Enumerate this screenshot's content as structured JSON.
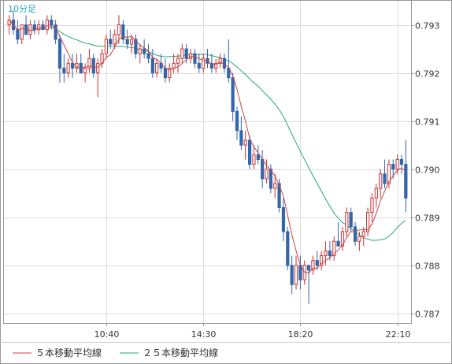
{
  "chart_data": {
    "type": "candlestick",
    "period_label": "10分足",
    "x_ticks": [
      "10:40",
      "14:30",
      "18:20",
      "22:10"
    ],
    "y_ticks": [
      0.787,
      0.788,
      0.789,
      0.79,
      0.791,
      0.792,
      0.793
    ],
    "ylim": [
      0.7868,
      0.7935
    ],
    "grid": true,
    "colors": {
      "up": "#cc3333",
      "down": "#3366aa",
      "ma5": "#cc4444",
      "ma25": "#22aa77",
      "grid": "#dcdcdc",
      "frame": "#999999"
    },
    "legend": [
      {
        "name": "５本移動平均線",
        "color": "#cc4444"
      },
      {
        "name": "２５本移動平均線",
        "color": "#22aa77"
      }
    ],
    "candles": [
      [
        0.793,
        0.7932,
        0.7928,
        0.7931
      ],
      [
        0.7931,
        0.7933,
        0.7928,
        0.7929
      ],
      [
        0.7929,
        0.7931,
        0.7926,
        0.7927
      ],
      [
        0.7927,
        0.793,
        0.7926,
        0.793
      ],
      [
        0.793,
        0.7932,
        0.7928,
        0.7928
      ],
      [
        0.7928,
        0.7931,
        0.7927,
        0.793
      ],
      [
        0.793,
        0.7931,
        0.7928,
        0.7929
      ],
      [
        0.7929,
        0.7931,
        0.7928,
        0.793
      ],
      [
        0.793,
        0.7931,
        0.7929,
        0.7929
      ],
      [
        0.7929,
        0.7932,
        0.7928,
        0.7931
      ],
      [
        0.7931,
        0.7932,
        0.7929,
        0.793
      ],
      [
        0.793,
        0.7931,
        0.7926,
        0.7927
      ],
      [
        0.7927,
        0.7928,
        0.7918,
        0.7921
      ],
      [
        0.7921,
        0.7924,
        0.7918,
        0.792
      ],
      [
        0.792,
        0.7923,
        0.7919,
        0.7922
      ],
      [
        0.7922,
        0.7924,
        0.7919,
        0.7921
      ],
      [
        0.7921,
        0.7924,
        0.792,
        0.7922
      ],
      [
        0.7922,
        0.7924,
        0.792,
        0.792
      ],
      [
        0.792,
        0.7922,
        0.7918,
        0.7921
      ],
      [
        0.7921,
        0.7925,
        0.792,
        0.7923
      ],
      [
        0.7923,
        0.7924,
        0.7919,
        0.792
      ],
      [
        0.792,
        0.7923,
        0.7915,
        0.7922
      ],
      [
        0.7922,
        0.7925,
        0.7921,
        0.7924
      ],
      [
        0.7924,
        0.7928,
        0.7923,
        0.7927
      ],
      [
        0.7927,
        0.7929,
        0.7925,
        0.7926
      ],
      [
        0.7926,
        0.7929,
        0.7925,
        0.7928
      ],
      [
        0.7928,
        0.7932,
        0.7926,
        0.793
      ],
      [
        0.793,
        0.7931,
        0.7926,
        0.7927
      ],
      [
        0.7927,
        0.7929,
        0.7925,
        0.7926
      ],
      [
        0.7926,
        0.7928,
        0.7924,
        0.7927
      ],
      [
        0.7927,
        0.7928,
        0.7923,
        0.7924
      ],
      [
        0.7924,
        0.7926,
        0.7922,
        0.7925
      ],
      [
        0.7925,
        0.7927,
        0.7923,
        0.7924
      ],
      [
        0.7924,
        0.7926,
        0.7922,
        0.7923
      ],
      [
        0.7923,
        0.7925,
        0.7919,
        0.792
      ],
      [
        0.792,
        0.7923,
        0.7919,
        0.7922
      ],
      [
        0.7922,
        0.7924,
        0.792,
        0.7921
      ],
      [
        0.7921,
        0.7923,
        0.7918,
        0.7919
      ],
      [
        0.7919,
        0.7922,
        0.7918,
        0.7921
      ],
      [
        0.7921,
        0.7924,
        0.792,
        0.7922
      ],
      [
        0.7922,
        0.7924,
        0.792,
        0.7923
      ],
      [
        0.7923,
        0.7926,
        0.7922,
        0.7925
      ],
      [
        0.7925,
        0.7926,
        0.7922,
        0.7923
      ],
      [
        0.7923,
        0.7925,
        0.7922,
        0.7924
      ],
      [
        0.7924,
        0.7925,
        0.7921,
        0.7922
      ],
      [
        0.7922,
        0.7924,
        0.792,
        0.7921
      ],
      [
        0.7921,
        0.7924,
        0.792,
        0.7923
      ],
      [
        0.7923,
        0.7925,
        0.7921,
        0.7922
      ],
      [
        0.7922,
        0.7924,
        0.792,
        0.7921
      ],
      [
        0.7921,
        0.7923,
        0.792,
        0.7922
      ],
      [
        0.7922,
        0.7924,
        0.7921,
        0.7923
      ],
      [
        0.7923,
        0.7924,
        0.792,
        0.7921
      ],
      [
        0.7921,
        0.7927,
        0.7918,
        0.7919
      ],
      [
        0.7919,
        0.792,
        0.791,
        0.7912
      ],
      [
        0.7912,
        0.7913,
        0.7906,
        0.7908
      ],
      [
        0.7908,
        0.7911,
        0.7904,
        0.7905
      ],
      [
        0.7905,
        0.7908,
        0.7902,
        0.7906
      ],
      [
        0.7906,
        0.7907,
        0.79,
        0.7901
      ],
      [
        0.7901,
        0.7905,
        0.79,
        0.7903
      ],
      [
        0.7903,
        0.7905,
        0.7901,
        0.7902
      ],
      [
        0.7902,
        0.7904,
        0.7896,
        0.7898
      ],
      [
        0.7898,
        0.7902,
        0.7897,
        0.79
      ],
      [
        0.79,
        0.7901,
        0.7895,
        0.7896
      ],
      [
        0.7896,
        0.7899,
        0.7894,
        0.7897
      ],
      [
        0.7897,
        0.7898,
        0.7891,
        0.7892
      ],
      [
        0.7892,
        0.7894,
        0.7885,
        0.7887
      ],
      [
        0.7887,
        0.7888,
        0.7879,
        0.788
      ],
      [
        0.788,
        0.7882,
        0.7874,
        0.7876
      ],
      [
        0.7876,
        0.7882,
        0.7875,
        0.788
      ],
      [
        0.788,
        0.7882,
        0.7875,
        0.7877
      ],
      [
        0.7877,
        0.7881,
        0.7876,
        0.788
      ],
      [
        0.788,
        0.788,
        0.7872,
        0.7879
      ],
      [
        0.7879,
        0.7882,
        0.7878,
        0.7881
      ],
      [
        0.7881,
        0.7883,
        0.7879,
        0.788
      ],
      [
        0.788,
        0.7883,
        0.7879,
        0.7882
      ],
      [
        0.7882,
        0.7885,
        0.788,
        0.7883
      ],
      [
        0.7883,
        0.7885,
        0.7881,
        0.7882
      ],
      [
        0.7882,
        0.7886,
        0.7881,
        0.7885
      ],
      [
        0.7885,
        0.7889,
        0.7884,
        0.7884
      ],
      [
        0.7884,
        0.7888,
        0.7883,
        0.7887
      ],
      [
        0.7887,
        0.7892,
        0.7886,
        0.7891
      ],
      [
        0.7891,
        0.7892,
        0.7887,
        0.7888
      ],
      [
        0.7888,
        0.7889,
        0.7884,
        0.7885
      ],
      [
        0.7885,
        0.7887,
        0.7883,
        0.7886
      ],
      [
        0.7886,
        0.7888,
        0.7884,
        0.7887
      ],
      [
        0.7887,
        0.7892,
        0.7886,
        0.7891
      ],
      [
        0.7891,
        0.7895,
        0.7889,
        0.7894
      ],
      [
        0.7894,
        0.7897,
        0.7892,
        0.7896
      ],
      [
        0.7896,
        0.79,
        0.7894,
        0.7899
      ],
      [
        0.7899,
        0.7902,
        0.7896,
        0.7897
      ],
      [
        0.7897,
        0.7902,
        0.7896,
        0.7901
      ],
      [
        0.7901,
        0.7902,
        0.7898,
        0.79
      ],
      [
        0.79,
        0.7903,
        0.7899,
        0.7902
      ],
      [
        0.7902,
        0.7903,
        0.7899,
        0.7901
      ],
      [
        0.7901,
        0.7906,
        0.7891,
        0.7894
      ]
    ]
  }
}
